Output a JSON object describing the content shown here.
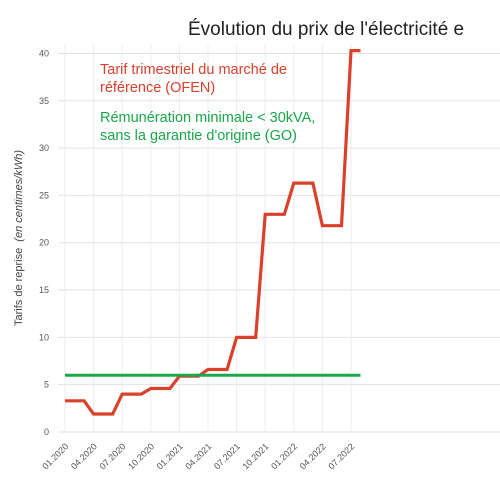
{
  "chart_data": {
    "type": "line",
    "title": "Évolution du prix de l'électricité e",
    "ylabel": "Tarifs de reprise",
    "ylabel_unit": "(en centimes/kWh)",
    "ylim": [
      0,
      41
    ],
    "yticks": [
      "0",
      "5",
      "10",
      "15",
      "20",
      "25",
      "30",
      "35",
      "40"
    ],
    "grid": true,
    "x_ticks": [
      "01.2020",
      "04.2020",
      "07.2020",
      "10.2020",
      "01.2021",
      "04.2021",
      "07.2021",
      "10.2021",
      "01.2022",
      "04.2022",
      "07.2022"
    ],
    "legend": {
      "ofen_line1": "Tarif trimestriel du marché de",
      "ofen_line2": "référence (OFEN)",
      "go_line1": "Rémunération  minimale  <  30kVA,",
      "go_line2": "sans la garantie d'origine (GO)"
    },
    "series": [
      {
        "key": "ofen",
        "color": "#d9412b",
        "points": [
          [
            "01.2020",
            3.3
          ],
          [
            "03.2020",
            3.3
          ],
          [
            "04.2020",
            1.9
          ],
          [
            "06.2020",
            1.9
          ],
          [
            "07.2020",
            4.0
          ],
          [
            "09.2020",
            4.0
          ],
          [
            "10.2020",
            4.6
          ],
          [
            "12.2020",
            4.6
          ],
          [
            "01.2021",
            5.9
          ],
          [
            "03.2021",
            5.9
          ],
          [
            "04.2021",
            6.6
          ],
          [
            "06.2021",
            6.6
          ],
          [
            "07.2021",
            10.0
          ],
          [
            "09.2021",
            10.0
          ],
          [
            "10.2021",
            23.0
          ],
          [
            "12.2021",
            23.0
          ],
          [
            "01.2022",
            26.3
          ],
          [
            "03.2022",
            26.3
          ],
          [
            "04.2022",
            21.8
          ],
          [
            "06.2022",
            21.8
          ],
          [
            "07.2022",
            40.3
          ],
          [
            "08.2022",
            40.3
          ]
        ]
      },
      {
        "key": "go",
        "color": "#1aa64a",
        "points": [
          [
            "01.2020",
            6.0
          ],
          [
            "08.2022",
            6.0
          ]
        ]
      }
    ]
  }
}
